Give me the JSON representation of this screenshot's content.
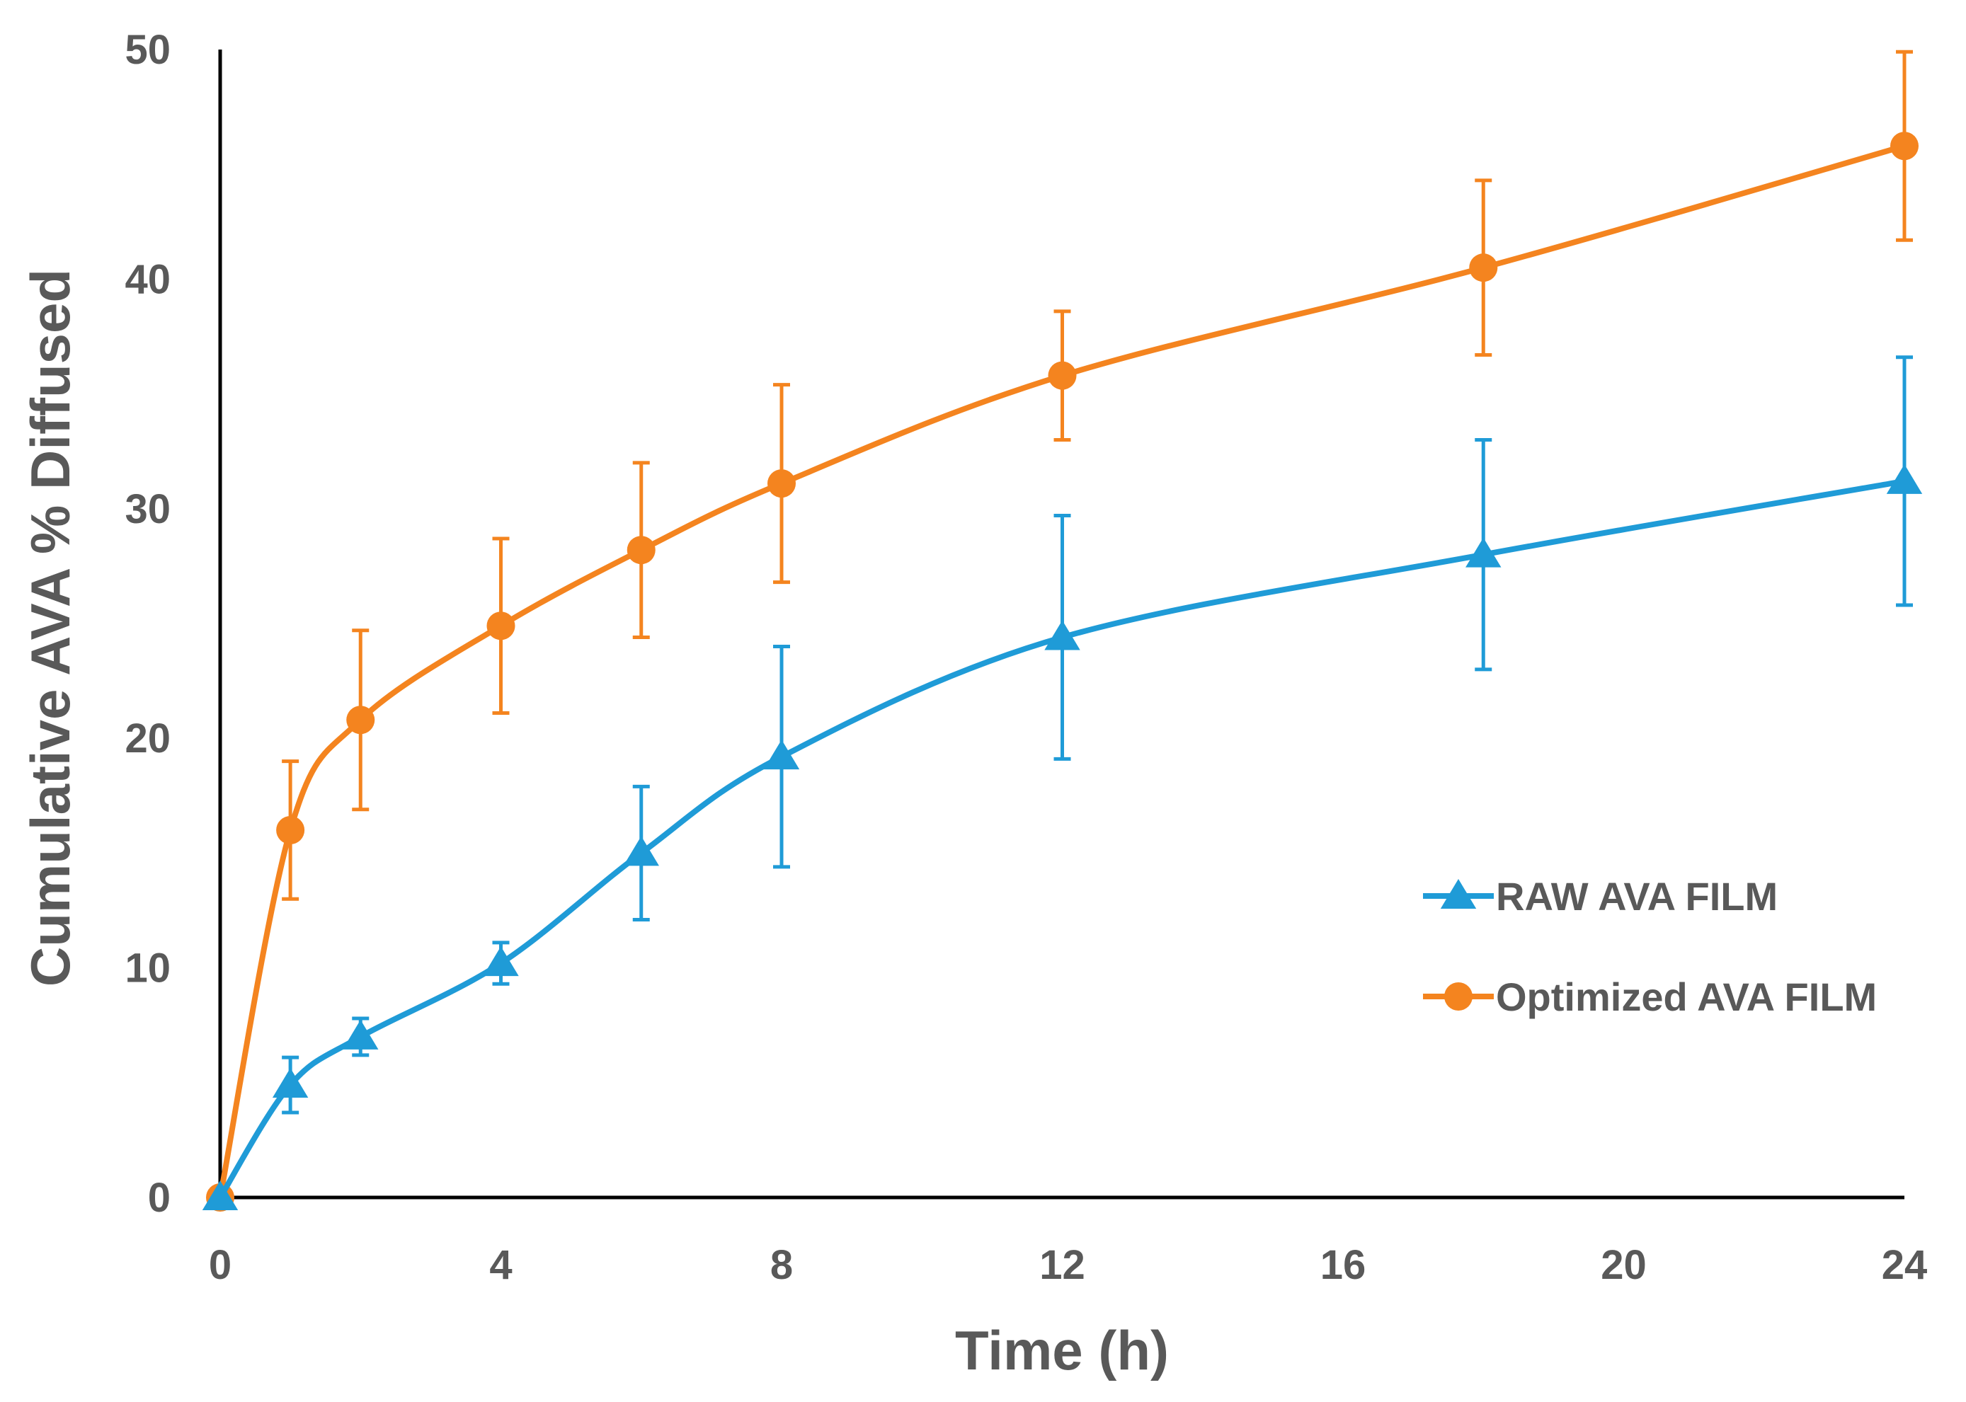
{
  "chart_data": {
    "type": "line",
    "title": "",
    "xlabel": "Time (h)",
    "ylabel": "Cumulative AVA % Diffused",
    "xlim": [
      0,
      24
    ],
    "ylim": [
      0,
      50
    ],
    "x_ticks": [
      0,
      4,
      8,
      12,
      16,
      20,
      24
    ],
    "y_ticks": [
      0,
      10,
      20,
      30,
      40,
      50
    ],
    "grid": false,
    "legend_position": "center-right",
    "x": [
      0,
      1,
      2,
      4,
      6,
      8,
      12,
      18,
      24
    ],
    "series": [
      {
        "name": "RAW AVA FILM",
        "color": "#1F9BD7",
        "marker": "triangle",
        "values": [
          0,
          4.9,
          7.0,
          10.2,
          15.0,
          19.2,
          24.4,
          28.0,
          31.2
        ],
        "errors": [
          0,
          1.2,
          0.8,
          0.9,
          2.9,
          4.8,
          5.3,
          5.0,
          5.4
        ]
      },
      {
        "name": "Optimized AVA FILM",
        "color": "#F4841F",
        "marker": "circle",
        "values": [
          0,
          16.0,
          20.8,
          24.9,
          28.2,
          31.1,
          35.8,
          40.5,
          45.8
        ],
        "errors": [
          0,
          3.0,
          3.9,
          3.8,
          3.8,
          4.3,
          2.8,
          3.8,
          4.1
        ]
      }
    ]
  }
}
